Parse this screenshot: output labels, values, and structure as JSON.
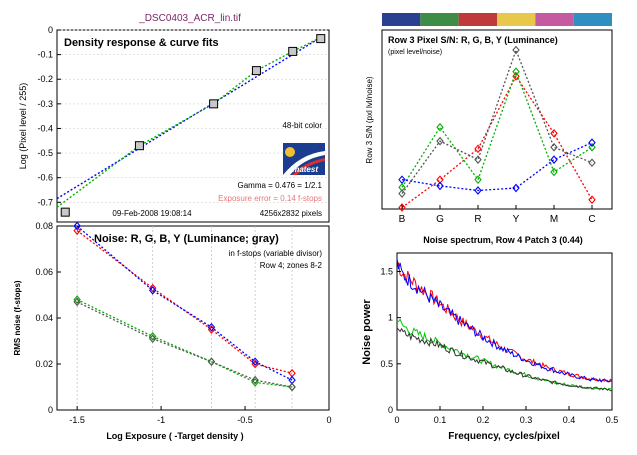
{
  "window_title": "_DSC0403_ACR_lin.tif",
  "chart_data": [
    {
      "id": "density",
      "type": "scatter",
      "title": "Density response & curve fits",
      "xlabel": "",
      "ylabel": "Log (Pixel level / 255)",
      "xlim": [
        -1.65,
        0
      ],
      "ylim": [
        -0.78,
        0
      ],
      "yticks": [
        0,
        -0.1,
        -0.2,
        -0.3,
        -0.4,
        -0.5,
        -0.6,
        -0.7
      ],
      "ytick_labels": [
        "0",
        "-0.1",
        "-0.2",
        "-0.3",
        "-0.4",
        "-0.5",
        "-0.6",
        "-0.7"
      ],
      "points": [
        {
          "x": -1.6,
          "y": -0.74
        },
        {
          "x": -1.15,
          "y": -0.47
        },
        {
          "x": -0.7,
          "y": -0.3
        },
        {
          "x": -0.44,
          "y": -0.165
        },
        {
          "x": -0.22,
          "y": -0.087
        },
        {
          "x": -0.05,
          "y": -0.035
        }
      ],
      "fit_blue": [
        [
          -1.65,
          -0.685
        ],
        [
          -0.05,
          -0.03
        ]
      ],
      "fit_green": [
        [
          -1.65,
          -0.72
        ],
        [
          -1.15,
          -0.47
        ],
        [
          -0.7,
          -0.3
        ],
        [
          -0.44,
          -0.165
        ],
        [
          -0.22,
          -0.087
        ],
        [
          -0.05,
          -0.03
        ]
      ],
      "annotations": {
        "bit_depth": "48-bit color",
        "logo": "Imatest",
        "gamma": "Gamma = 0.476 = 1/2.1",
        "exposure_error": "Exposure error = 0.14 f-stops",
        "date": "09-Feb-2008 19:08:14",
        "pixels": "4256x2832 pixels"
      },
      "colors": {
        "blue": "#0000ff",
        "green": "#00b000",
        "error_text": "#e87878"
      }
    },
    {
      "id": "snr",
      "type": "line",
      "title": "Row 3 Pixel S/N: R, G, B, Y (Luminance)",
      "subtitle": "(pixel level/noise)",
      "ylabel": "Row 3 S/N (pxl lvl/noise)",
      "categories": [
        "B",
        "G",
        "R",
        "Y",
        "M",
        "C"
      ],
      "ylim": [
        0,
        580
      ],
      "color_strip": [
        "#2a3f8f",
        "#3e8c45",
        "#c0393b",
        "#e8c84a",
        "#c65aa0",
        "#2f8fc0"
      ],
      "series": [
        {
          "color": "#ff0000",
          "values": [
            5,
            95,
            195,
            430,
            245,
            30
          ]
        },
        {
          "color": "#00b000",
          "values": [
            70,
            265,
            95,
            445,
            120,
            200
          ]
        },
        {
          "color": "#0000ff",
          "values": [
            95,
            75,
            60,
            68,
            160,
            215
          ]
        },
        {
          "color": "#555555",
          "values": [
            50,
            220,
            160,
            515,
            200,
            150
          ]
        }
      ]
    },
    {
      "id": "noise",
      "type": "line",
      "title": "Noise: R, G, B, Y (Luminance; gray)",
      "annotations": [
        "in f-stops (variable divisor)",
        "Row 4; zones 8-2"
      ],
      "xlabel": "Log Exposure ( -Target density )",
      "ylabel": "RMS noise (f-stops)",
      "xlim": [
        -1.62,
        0
      ],
      "ylim": [
        0,
        0.08
      ],
      "xticks": [
        -1.5,
        -1,
        -0.5,
        0
      ],
      "xtick_labels": [
        "-1.5",
        "-1",
        "-0.5",
        "0"
      ],
      "yticks": [
        0,
        0.02,
        0.04,
        0.06,
        0.08
      ],
      "ytick_labels": [
        "0",
        "0.02",
        "0.04",
        "0.06",
        "0.08"
      ],
      "x": [
        -1.5,
        -1.05,
        -0.7,
        -0.44,
        -0.22
      ],
      "series": [
        {
          "color": "#ff0000",
          "values": [
            0.078,
            0.053,
            0.035,
            0.02,
            0.016
          ]
        },
        {
          "color": "#0000ff",
          "values": [
            0.08,
            0.052,
            0.036,
            0.021,
            0.013
          ]
        },
        {
          "color": "#00b000",
          "values": [
            0.048,
            0.032,
            0.021,
            0.012,
            0.01
          ]
        },
        {
          "color": "#555555",
          "values": [
            0.047,
            0.031,
            0.021,
            0.013,
            0.01
          ]
        }
      ]
    },
    {
      "id": "spectrum",
      "type": "line",
      "title": "Noise spectrum, Row 4 Patch 3 (0.44)",
      "xlabel": "Frequency, cycles/pixel",
      "ylabel": "Noise power",
      "xlim": [
        0,
        0.5
      ],
      "ylim": [
        0,
        1.7
      ],
      "xticks": [
        0,
        0.1,
        0.2,
        0.3,
        0.4,
        0.5
      ],
      "xtick_labels": [
        "0",
        "0.1",
        "0.2",
        "0.3",
        "0.4",
        "0.5"
      ],
      "yticks": [
        0,
        0.5,
        1,
        1.5
      ],
      "ytick_labels": [
        "0",
        "0.5",
        "1",
        "1.5"
      ],
      "series": [
        {
          "color": "#ff0000",
          "x": [
            0,
            0.01,
            0.03,
            0.06,
            0.1,
            0.15,
            0.2,
            0.25,
            0.3,
            0.35,
            0.4,
            0.45,
            0.5
          ],
          "values": [
            1.62,
            1.5,
            1.42,
            1.3,
            1.15,
            0.96,
            0.8,
            0.66,
            0.55,
            0.46,
            0.39,
            0.34,
            0.32
          ]
        },
        {
          "color": "#0000ff",
          "x": [
            0,
            0.01,
            0.03,
            0.06,
            0.1,
            0.15,
            0.2,
            0.25,
            0.3,
            0.35,
            0.4,
            0.45,
            0.5
          ],
          "values": [
            1.6,
            1.48,
            1.4,
            1.28,
            1.12,
            0.95,
            0.79,
            0.65,
            0.54,
            0.45,
            0.38,
            0.33,
            0.31
          ]
        },
        {
          "color": "#00c800",
          "x": [
            0,
            0.01,
            0.03,
            0.06,
            0.1,
            0.15,
            0.2,
            0.25,
            0.3,
            0.35,
            0.4,
            0.45,
            0.5
          ],
          "values": [
            1.0,
            0.92,
            0.86,
            0.8,
            0.72,
            0.62,
            0.53,
            0.45,
            0.38,
            0.31,
            0.27,
            0.24,
            0.22
          ]
        },
        {
          "color": "#333333",
          "x": [
            0,
            0.01,
            0.03,
            0.06,
            0.1,
            0.15,
            0.2,
            0.25,
            0.3,
            0.35,
            0.4,
            0.45,
            0.5
          ],
          "values": [
            0.92,
            0.84,
            0.8,
            0.76,
            0.7,
            0.6,
            0.52,
            0.44,
            0.37,
            0.31,
            0.27,
            0.24,
            0.22
          ]
        }
      ]
    }
  ]
}
